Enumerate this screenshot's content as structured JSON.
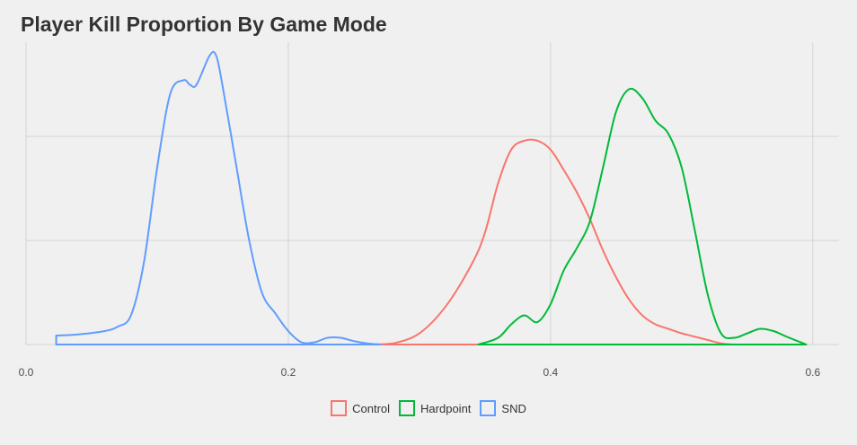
{
  "chart_data": {
    "type": "area",
    "title": "Player Kill Proportion By Game Mode",
    "xlabel": "",
    "ylabel": "",
    "xlim": [
      0.0,
      0.62
    ],
    "ylim": [
      0,
      10.1
    ],
    "x_ticks": [
      0.0,
      0.2,
      0.4,
      0.6
    ],
    "x_tick_labels": [
      "0.0",
      "0.2",
      "0.4",
      "0.6"
    ],
    "y_gridlines": [
      0,
      5,
      10
    ],
    "grid": true,
    "legend_position": "bottom",
    "series": [
      {
        "name": "Control",
        "color": "#F8766D",
        "x": [
          0.265,
          0.28,
          0.3,
          0.32,
          0.34,
          0.35,
          0.36,
          0.37,
          0.38,
          0.39,
          0.4,
          0.41,
          0.42,
          0.43,
          0.44,
          0.45,
          0.46,
          0.47,
          0.48,
          0.49,
          0.5,
          0.51,
          0.52,
          0.53,
          0.54
        ],
        "y": [
          0.0,
          0.05,
          0.5,
          1.7,
          3.6,
          5.0,
          7.2,
          8.7,
          9.1,
          9.1,
          8.7,
          7.8,
          6.8,
          5.6,
          4.2,
          3.0,
          2.0,
          1.3,
          0.9,
          0.7,
          0.5,
          0.35,
          0.2,
          0.05,
          0.0
        ]
      },
      {
        "name": "Hardpoint",
        "color": "#00BA38",
        "x": [
          0.345,
          0.36,
          0.37,
          0.38,
          0.39,
          0.4,
          0.41,
          0.42,
          0.43,
          0.44,
          0.45,
          0.46,
          0.47,
          0.48,
          0.49,
          0.5,
          0.51,
          0.52,
          0.53,
          0.54,
          0.55,
          0.56,
          0.57,
          0.58,
          0.595
        ],
        "y": [
          0.0,
          0.3,
          0.9,
          1.3,
          1.0,
          1.8,
          3.3,
          4.3,
          5.5,
          7.9,
          10.4,
          11.4,
          11.0,
          10.0,
          9.4,
          7.9,
          5.1,
          2.2,
          0.5,
          0.3,
          0.5,
          0.7,
          0.6,
          0.35,
          0.0
        ]
      },
      {
        "name": "SND",
        "color": "#619CFF",
        "x": [
          0.023,
          0.04,
          0.06,
          0.07,
          0.08,
          0.09,
          0.1,
          0.11,
          0.12,
          0.125,
          0.13,
          0.14,
          0.145,
          0.15,
          0.16,
          0.17,
          0.18,
          0.19,
          0.2,
          0.21,
          0.22,
          0.23,
          0.24,
          0.25,
          0.26,
          0.27
        ],
        "y": [
          0.4,
          0.45,
          0.6,
          0.8,
          1.3,
          3.7,
          7.9,
          11.2,
          11.8,
          11.6,
          11.6,
          12.9,
          12.9,
          11.5,
          8.1,
          4.7,
          2.3,
          1.4,
          0.6,
          0.1,
          0.1,
          0.3,
          0.3,
          0.15,
          0.05,
          0.0
        ]
      }
    ]
  },
  "legend": {
    "items": [
      {
        "label": "Control",
        "color": "#F8766D"
      },
      {
        "label": "Hardpoint",
        "color": "#00BA38"
      },
      {
        "label": "SND",
        "color": "#619CFF"
      }
    ]
  }
}
